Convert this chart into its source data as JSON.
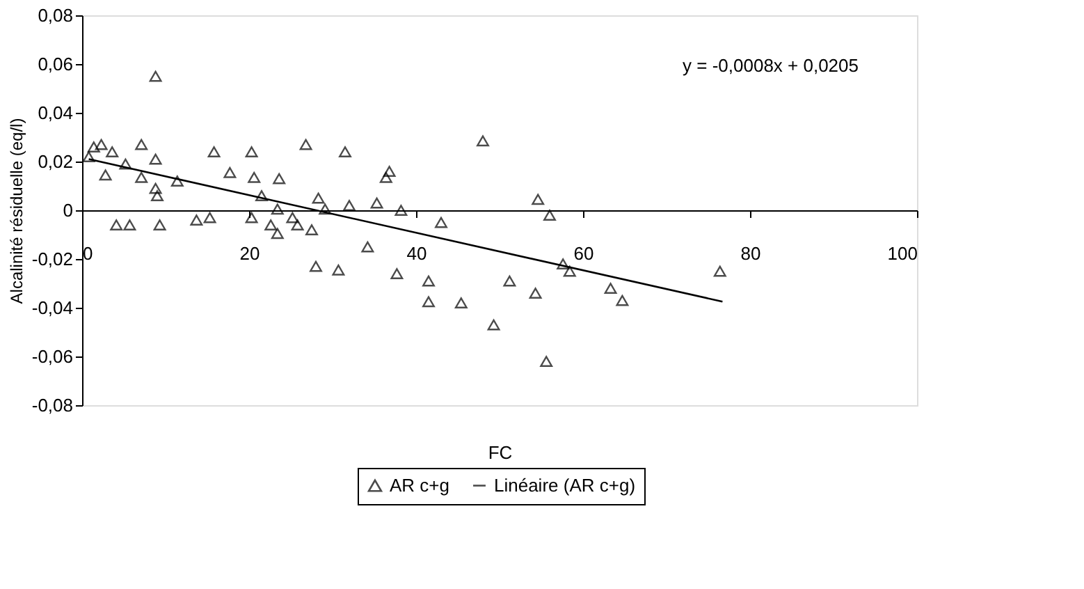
{
  "chart_data": {
    "type": "scatter",
    "xlabel": "FC",
    "ylabel": "Alcalinité résiduelle (eq/l)",
    "annotations": [
      "y = -0,0008x + 0,0205"
    ],
    "xlim": [
      0,
      100
    ],
    "xticks": [
      0,
      20,
      40,
      60,
      80,
      100
    ],
    "ylim": [
      -0.08,
      0.08
    ],
    "yticks": [
      {
        "value": -0.08,
        "label": "-0,08"
      },
      {
        "value": -0.06,
        "label": "-0,06"
      },
      {
        "value": -0.04,
        "label": "-0,04"
      },
      {
        "value": -0.02,
        "label": "-0,02"
      },
      0,
      {
        "value": 0.02,
        "label": "0,02"
      },
      {
        "value": 0.04,
        "label": "0,04"
      },
      {
        "value": 0.06,
        "label": "0,06"
      },
      {
        "value": 0.08,
        "label": "0,08"
      }
    ],
    "grid": false,
    "legend": "bottom",
    "series": [
      {
        "name": "AR c+g",
        "marker": "triangle",
        "color": "#000000",
        "x": [
          0.8,
          1.4,
          2.3,
          2.8,
          3.6,
          4.1,
          5.2,
          5.7,
          7.1,
          7.1,
          8.8,
          8.8,
          8.8,
          9.0,
          9.3,
          11.4,
          13.7,
          15.3,
          15.8,
          17.7,
          20.3,
          20.3,
          20.6,
          21.5,
          22.6,
          23.4,
          23.4,
          23.6,
          25.2,
          25.8,
          26.8,
          27.5,
          28.0,
          28.3,
          29.1,
          30.7,
          31.5,
          32.0,
          34.2,
          35.3,
          36.4,
          36.8,
          37.7,
          38.2,
          41.5,
          41.5,
          43.0,
          45.4,
          48.0,
          49.3,
          51.2,
          54.3,
          54.6,
          55.6,
          56.0,
          57.6,
          58.4,
          63.3,
          64.7,
          76.4
        ],
        "values": [
          0.022,
          0.026,
          0.027,
          0.0145,
          0.024,
          -0.006,
          0.019,
          -0.006,
          0.027,
          0.0135,
          0.055,
          0.021,
          0.009,
          0.006,
          -0.006,
          0.012,
          -0.004,
          -0.003,
          0.024,
          0.0155,
          0.024,
          -0.003,
          0.0135,
          0.006,
          -0.006,
          0.0005,
          -0.0095,
          0.013,
          -0.003,
          -0.006,
          0.027,
          -0.008,
          -0.023,
          0.005,
          0.0005,
          -0.0245,
          0.024,
          0.002,
          -0.015,
          0.003,
          0.0135,
          0.016,
          -0.026,
          0.0,
          -0.029,
          -0.0375,
          -0.005,
          -0.038,
          0.0285,
          -0.047,
          -0.029,
          -0.034,
          0.0045,
          -0.062,
          -0.002,
          -0.022,
          -0.025,
          -0.032,
          -0.037,
          -0.025
        ]
      },
      {
        "name": "Linéaire (AR c+g)",
        "type": "line",
        "marker": "none",
        "line_style": "solid",
        "color": "#000000",
        "x": [
          0.8,
          76.7
        ],
        "values": [
          0.021,
          -0.0375
        ]
      }
    ]
  }
}
